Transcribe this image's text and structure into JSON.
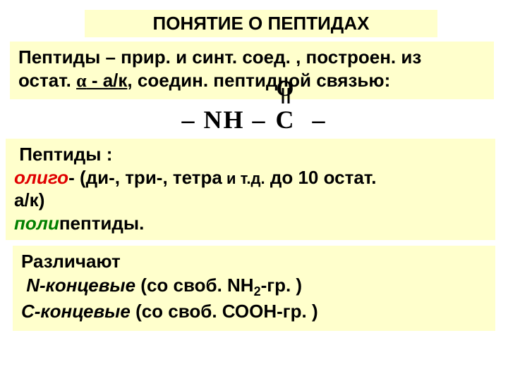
{
  "title": "ПОНЯТИЕ О ПЕПТИДАХ",
  "definition": {
    "line1_a": "Пептиды – прир. и синт. соед. , построен. из",
    "line2_a": "остат. ",
    "alpha": "α",
    "ak_part": " - а/к",
    "line2_b": ", соедин. пептидной связью:"
  },
  "formula": {
    "dash": "–",
    "nh": "NH",
    "c": "C",
    "o": "O"
  },
  "classify": {
    "head": "Пептиды :",
    "oligo": "олиго",
    "oligo_rest_a": "- (ди",
    "oligo_rest_b": "-, три-, тетра",
    "oligo_rest_c": " и т.д.",
    "oligo_rest_d": " до 10 остат.",
    "ak_line": "а/к)",
    "poly": "поли",
    "poly_rest": "пептиды."
  },
  "terminal": {
    "head": "Различают",
    "n_term_a": "N-концевые",
    "n_term_b": " (со своб. NH",
    "n_sub": "2",
    "n_term_c": "-гр. )",
    "c_term_a": "С-концевые",
    "c_term_b": " (со своб. СООН-гр. )"
  },
  "colors": {
    "highlight_bg": "#ffffcc",
    "oligo_color": "#e00000",
    "poly_color": "#008000",
    "page_bg": "#ffffff"
  },
  "typography": {
    "title_fontsize": 26,
    "body_fontsize": 26,
    "small_fontsize": 22,
    "formula_fontsize": 36,
    "font_family": "Arial"
  }
}
